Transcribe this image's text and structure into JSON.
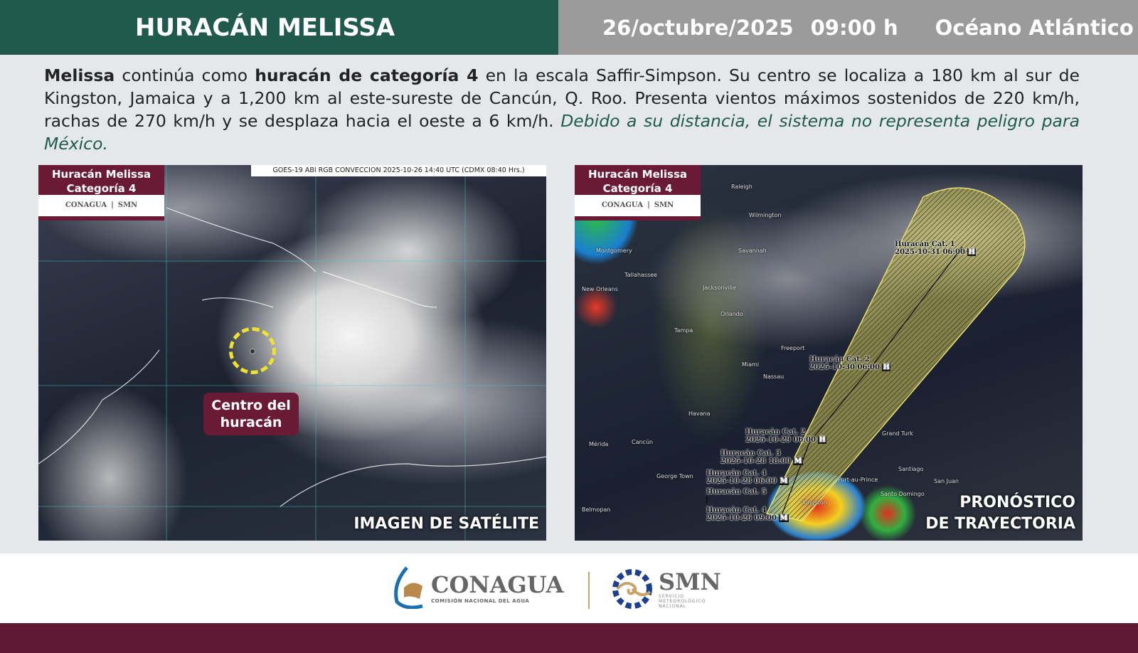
{
  "header": {
    "title": "HURACÁN MELISSA",
    "date": "26/octubre/2025",
    "time": "09:00 h",
    "region": "Océano Atlántico"
  },
  "bulletin": {
    "name": "Melissa",
    "p1": " continúa como ",
    "category": "huracán de categoría 4",
    "p2": " en la escala Saffir-Simpson. Su centro se localiza a 180 km al sur de Kingston, Jamaica y a 1,200 km al este-sureste de Cancún, Q. Roo. Presenta vientos máximos sostenidos de 220 km/h, rachas de 270 km/h y se desplaza hacia el oeste a 6 km/h. ",
    "note": "Debido a su distancia, el sistema no representa peligro para México."
  },
  "badge": {
    "line1": "Huracán Melissa",
    "line2": "Categoría 4",
    "logo1": "CONAGUA",
    "logo2": "SMN"
  },
  "satellite": {
    "source": "GOES-19 ABI RGB CONVECCION 2025-10-26 14:40 UTC (CDMX  08:40 Hrs.)",
    "center_label_1": "Centro del",
    "center_label_2": "huracán",
    "caption": "IMAGEN DE SATÉLITE",
    "marker_color": "#f0e030"
  },
  "forecast": {
    "caption_1": "PRONÓSTICO",
    "caption_2": "DE TRAYECTORIA",
    "cone_color": "#e8e070",
    "points": [
      {
        "label": "Huracán Cat. 1",
        "time": "2025-10-31 06:00",
        "symbol": "H"
      },
      {
        "label": "Huracán Cat. 2",
        "time": "2025-10-30 06:00",
        "symbol": "H"
      },
      {
        "label": "Huracán Cat. 2",
        "time": "2025-10-29 06:00",
        "symbol": "H"
      },
      {
        "label": "Huracán Cat. 3",
        "time": "2025-10-28 18:00",
        "symbol": "M"
      },
      {
        "label": "Huracán Cat. 4",
        "time": "2025-10-28 06:00",
        "symbol": "M"
      },
      {
        "label": "Huracán Cat. 5",
        "time": "",
        "symbol": ""
      },
      {
        "label": "Huracán Cat. 4",
        "time": "2025-10-26 09:00",
        "symbol": "M"
      }
    ],
    "places": [
      "Raleigh",
      "Wilmington",
      "Montgomery",
      "Savannah",
      "Tallahassee",
      "New Orleans",
      "Jacksonville",
      "Orlando",
      "Tampa",
      "Freeport",
      "Miami",
      "Nassau",
      "Havana",
      "Cancún",
      "Mérida",
      "George Town",
      "Belmopan",
      "Grand Turk",
      "Santiago",
      "Port-au-Prince",
      "Santo Domingo",
      "San Juan",
      "Kingston"
    ]
  },
  "footer": {
    "conagua": "CONAGUA",
    "conagua_sub": "COMISIÓN NACIONAL DEL AGUA",
    "smn": "SMN",
    "smn_sub1": "SERVICIO",
    "smn_sub2": "METEOROLÓGICO",
    "smn_sub3": "NACIONAL",
    "brand_color": "#5e1a33"
  }
}
